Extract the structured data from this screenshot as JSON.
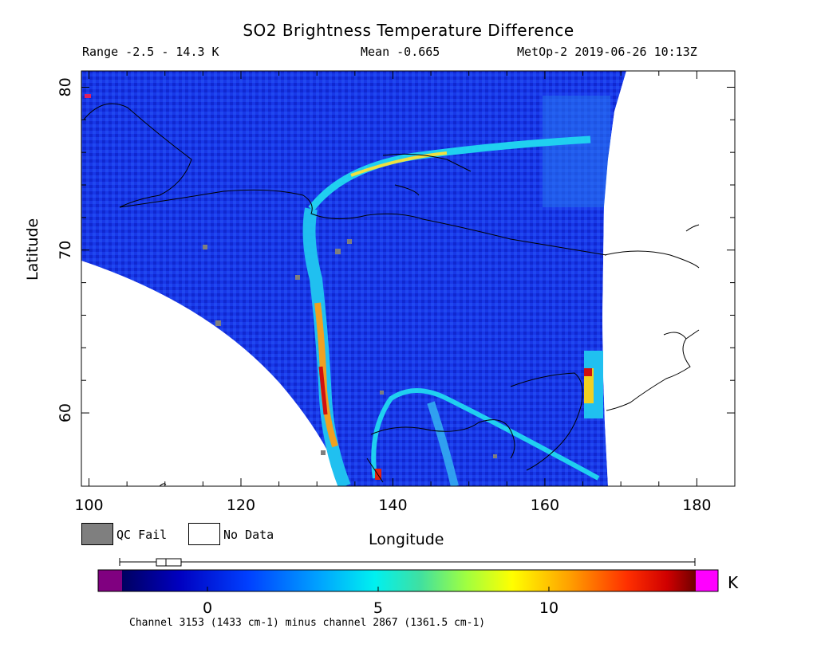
{
  "header": {
    "title": "SO2 Brightness Temperature Difference",
    "range": "Range -2.5 - 14.3 K",
    "mean": "Mean -0.665",
    "satellite_time": "MetOp-2 2019-06-26 10:13Z"
  },
  "axes": {
    "xlabel": "Longitude",
    "ylabel": "Latitude",
    "x_ticks": [
      "100",
      "120",
      "140",
      "160",
      "180"
    ],
    "y_ticks": [
      "60",
      "70",
      "80"
    ],
    "xlim": [
      99,
      185
    ],
    "ylim": [
      55.5,
      81
    ]
  },
  "legend": {
    "qc_fail": "QC Fail",
    "no_data": "No Data",
    "qc_color": "#7f7f7f"
  },
  "colorbar": {
    "unit": "K",
    "ticks": [
      "0",
      "5",
      "10"
    ],
    "tick_values": [
      0,
      5,
      10
    ],
    "range": [
      -2.5,
      14.3
    ],
    "underflow_color": "#800080",
    "overflow_color": "#ff00ff",
    "caption": "Channel 3153 (1433 cm-1) minus channel 2867 (1361.5 cm-1)"
  },
  "colors": {
    "background_field": "#1030e0",
    "plume_high": "#d01010"
  }
}
